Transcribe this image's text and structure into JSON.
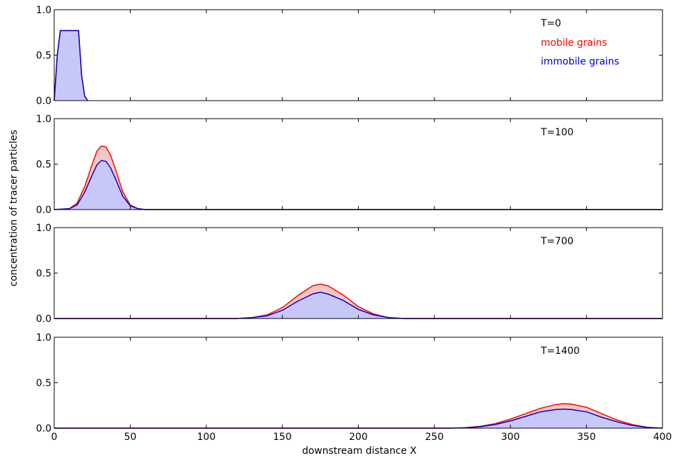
{
  "chart_data": {
    "type": "area",
    "ylabel": "concentration of tracer particles",
    "xlabel": "downstream distance X",
    "xlim": [
      0,
      400
    ],
    "x_ticks": [
      0,
      50,
      100,
      150,
      200,
      250,
      300,
      350,
      400
    ],
    "y_ticks": [
      0.0,
      0.5,
      1.0
    ],
    "ylim": [
      0,
      1
    ],
    "grid": false,
    "legend": {
      "position": "top-right",
      "entries": [
        {
          "name": "mobile grains",
          "color": "#ff0000"
        },
        {
          "name": "immobile grains",
          "color": "#0000cc"
        }
      ]
    },
    "colors": {
      "mobile_line": "#ff0000",
      "mobile_fill": "#f5c6c6",
      "immobile_line": "#0000cc",
      "immobile_fill": "#c8c8f8"
    },
    "panels": [
      {
        "label": "T=0",
        "series": [
          {
            "name": "mobile grains",
            "x": [
              0,
              2,
              4,
              10,
              16,
              18,
              20,
              22
            ],
            "y": [
              0,
              0.5,
              0.77,
              0.77,
              0.77,
              0.28,
              0.05,
              0
            ]
          },
          {
            "name": "immobile grains",
            "x": [
              0,
              2,
              4,
              10,
              16,
              18,
              20,
              22
            ],
            "y": [
              0,
              0.5,
              0.77,
              0.77,
              0.77,
              0.28,
              0.05,
              0
            ]
          }
        ]
      },
      {
        "label": "T=100",
        "series": [
          {
            "name": "mobile grains",
            "x": [
              0,
              10,
              15,
              20,
              25,
              28,
              31,
              34,
              37,
              40,
              45,
              50,
              55,
              60,
              400
            ],
            "y": [
              0,
              0.01,
              0.07,
              0.25,
              0.5,
              0.64,
              0.7,
              0.69,
              0.6,
              0.46,
              0.2,
              0.05,
              0.01,
              0,
              0
            ]
          },
          {
            "name": "immobile grains",
            "x": [
              0,
              10,
              15,
              20,
              25,
              28,
              31,
              34,
              37,
              40,
              45,
              50,
              55,
              60,
              400
            ],
            "y": [
              0,
              0.01,
              0.05,
              0.19,
              0.38,
              0.49,
              0.54,
              0.53,
              0.46,
              0.35,
              0.15,
              0.04,
              0.01,
              0,
              0
            ]
          }
        ]
      },
      {
        "label": "T=700",
        "series": [
          {
            "name": "mobile grains",
            "x": [
              0,
              120,
              130,
              140,
              150,
              160,
              170,
              175,
              180,
              190,
              200,
              210,
              220,
              230,
              400
            ],
            "y": [
              0,
              0.0,
              0.01,
              0.04,
              0.12,
              0.25,
              0.36,
              0.38,
              0.36,
              0.26,
              0.13,
              0.05,
              0.01,
              0,
              0
            ]
          },
          {
            "name": "immobile grains",
            "x": [
              0,
              120,
              130,
              140,
              150,
              160,
              170,
              175,
              180,
              190,
              200,
              210,
              220,
              230,
              400
            ],
            "y": [
              0,
              0.0,
              0.01,
              0.03,
              0.09,
              0.19,
              0.27,
              0.29,
              0.27,
              0.2,
              0.1,
              0.04,
              0.01,
              0,
              0
            ]
          }
        ]
      },
      {
        "label": "T=1400",
        "series": [
          {
            "name": "mobile grains",
            "x": [
              0,
              260,
              270,
              280,
              290,
              300,
              310,
              320,
              330,
              335,
              340,
              350,
              360,
              370,
              380,
              390,
              400
            ],
            "y": [
              0,
              0.0,
              0.005,
              0.02,
              0.05,
              0.1,
              0.16,
              0.22,
              0.26,
              0.27,
              0.265,
              0.23,
              0.16,
              0.09,
              0.04,
              0.01,
              0
            ]
          },
          {
            "name": "immobile grains",
            "x": [
              0,
              260,
              270,
              280,
              290,
              300,
              310,
              320,
              330,
              335,
              340,
              350,
              360,
              370,
              380,
              390,
              400
            ],
            "y": [
              0,
              0.0,
              0.004,
              0.015,
              0.04,
              0.08,
              0.13,
              0.18,
              0.205,
              0.21,
              0.205,
              0.18,
              0.12,
              0.07,
              0.03,
              0.008,
              0
            ]
          }
        ]
      }
    ]
  }
}
